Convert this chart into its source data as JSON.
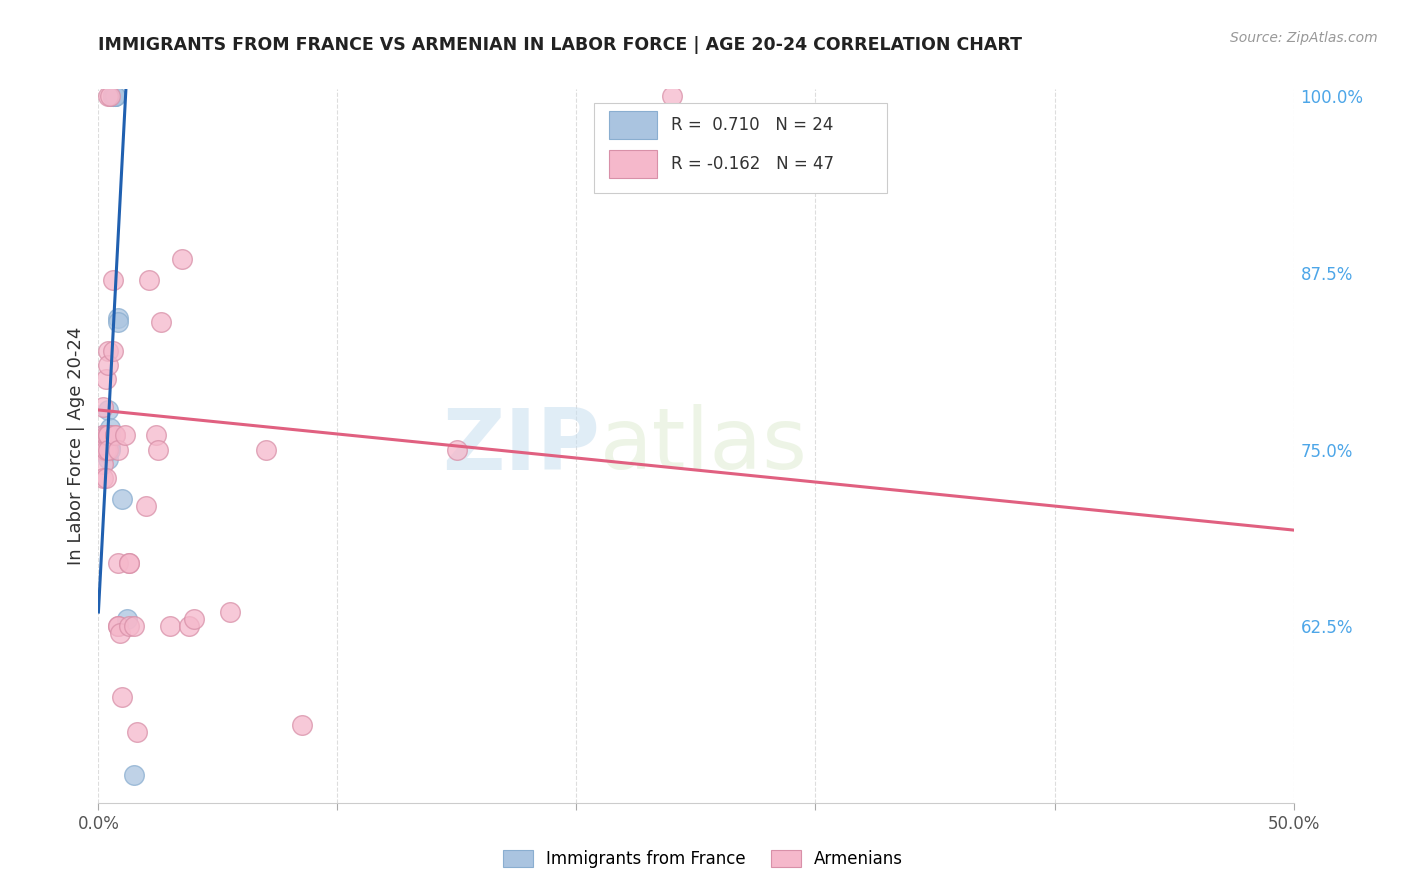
{
  "title": "IMMIGRANTS FROM FRANCE VS ARMENIAN IN LABOR FORCE | AGE 20-24 CORRELATION CHART",
  "source": "Source: ZipAtlas.com",
  "ylabel": "In Labor Force | Age 20-24",
  "xlim": [
    0.0,
    0.5
  ],
  "ylim": [
    0.5,
    1.005
  ],
  "xtick_positions": [
    0.0,
    0.1,
    0.2,
    0.3,
    0.4,
    0.5
  ],
  "xticklabels": [
    "0.0%",
    "",
    "",
    "",
    "",
    "50.0%"
  ],
  "yticks_right": [
    0.625,
    0.75,
    0.875,
    1.0
  ],
  "ytick_right_labels": [
    "62.5%",
    "75.0%",
    "87.5%",
    "100.0%"
  ],
  "blue_color": "#aac4e0",
  "pink_color": "#f5b8cb",
  "blue_line_color": "#2060b0",
  "pink_line_color": "#e06080",
  "watermark_zip": "ZIP",
  "watermark_atlas": "atlas",
  "france_points": [
    [
      0.002,
      0.76
    ],
    [
      0.003,
      0.76
    ],
    [
      0.003,
      0.748
    ],
    [
      0.004,
      0.778
    ],
    [
      0.004,
      0.76
    ],
    [
      0.004,
      0.755
    ],
    [
      0.004,
      0.743
    ],
    [
      0.005,
      0.765
    ],
    [
      0.005,
      0.76
    ],
    [
      0.005,
      0.752
    ],
    [
      0.005,
      0.75
    ],
    [
      0.006,
      1.0
    ],
    [
      0.006,
      1.0
    ],
    [
      0.006,
      1.0
    ],
    [
      0.006,
      1.0
    ],
    [
      0.007,
      1.0
    ],
    [
      0.007,
      1.0
    ],
    [
      0.007,
      1.0
    ],
    [
      0.008,
      0.843
    ],
    [
      0.008,
      0.84
    ],
    [
      0.01,
      0.715
    ],
    [
      0.012,
      0.63
    ],
    [
      0.015,
      0.52
    ]
  ],
  "armenian_points": [
    [
      0.002,
      0.78
    ],
    [
      0.002,
      0.76
    ],
    [
      0.002,
      0.75
    ],
    [
      0.002,
      0.74
    ],
    [
      0.002,
      0.73
    ],
    [
      0.003,
      0.8
    ],
    [
      0.003,
      0.76
    ],
    [
      0.003,
      0.75
    ],
    [
      0.003,
      0.73
    ],
    [
      0.004,
      0.82
    ],
    [
      0.004,
      0.81
    ],
    [
      0.004,
      0.76
    ],
    [
      0.004,
      0.76
    ],
    [
      0.004,
      0.75
    ],
    [
      0.004,
      1.0
    ],
    [
      0.005,
      1.0
    ],
    [
      0.006,
      0.87
    ],
    [
      0.006,
      0.82
    ],
    [
      0.007,
      0.76
    ],
    [
      0.007,
      0.76
    ],
    [
      0.008,
      0.75
    ],
    [
      0.008,
      0.67
    ],
    [
      0.008,
      0.625
    ],
    [
      0.008,
      0.625
    ],
    [
      0.009,
      0.62
    ],
    [
      0.01,
      0.575
    ],
    [
      0.011,
      0.76
    ],
    [
      0.013,
      0.67
    ],
    [
      0.013,
      0.67
    ],
    [
      0.013,
      0.625
    ],
    [
      0.015,
      0.625
    ],
    [
      0.016,
      0.55
    ],
    [
      0.02,
      0.71
    ],
    [
      0.021,
      0.87
    ],
    [
      0.024,
      0.76
    ],
    [
      0.025,
      0.75
    ],
    [
      0.026,
      0.84
    ],
    [
      0.03,
      0.625
    ],
    [
      0.035,
      0.885
    ],
    [
      0.038,
      0.625
    ],
    [
      0.04,
      0.63
    ],
    [
      0.055,
      0.635
    ],
    [
      0.07,
      0.75
    ],
    [
      0.085,
      0.555
    ],
    [
      0.15,
      0.75
    ],
    [
      0.24,
      1.0
    ]
  ],
  "france_trend_x": [
    0.0,
    0.0115
  ],
  "france_trend_y": [
    0.635,
    1.005
  ],
  "armenian_trend_x": [
    0.0,
    0.5
  ],
  "armenian_trend_y": [
    0.778,
    0.693
  ]
}
